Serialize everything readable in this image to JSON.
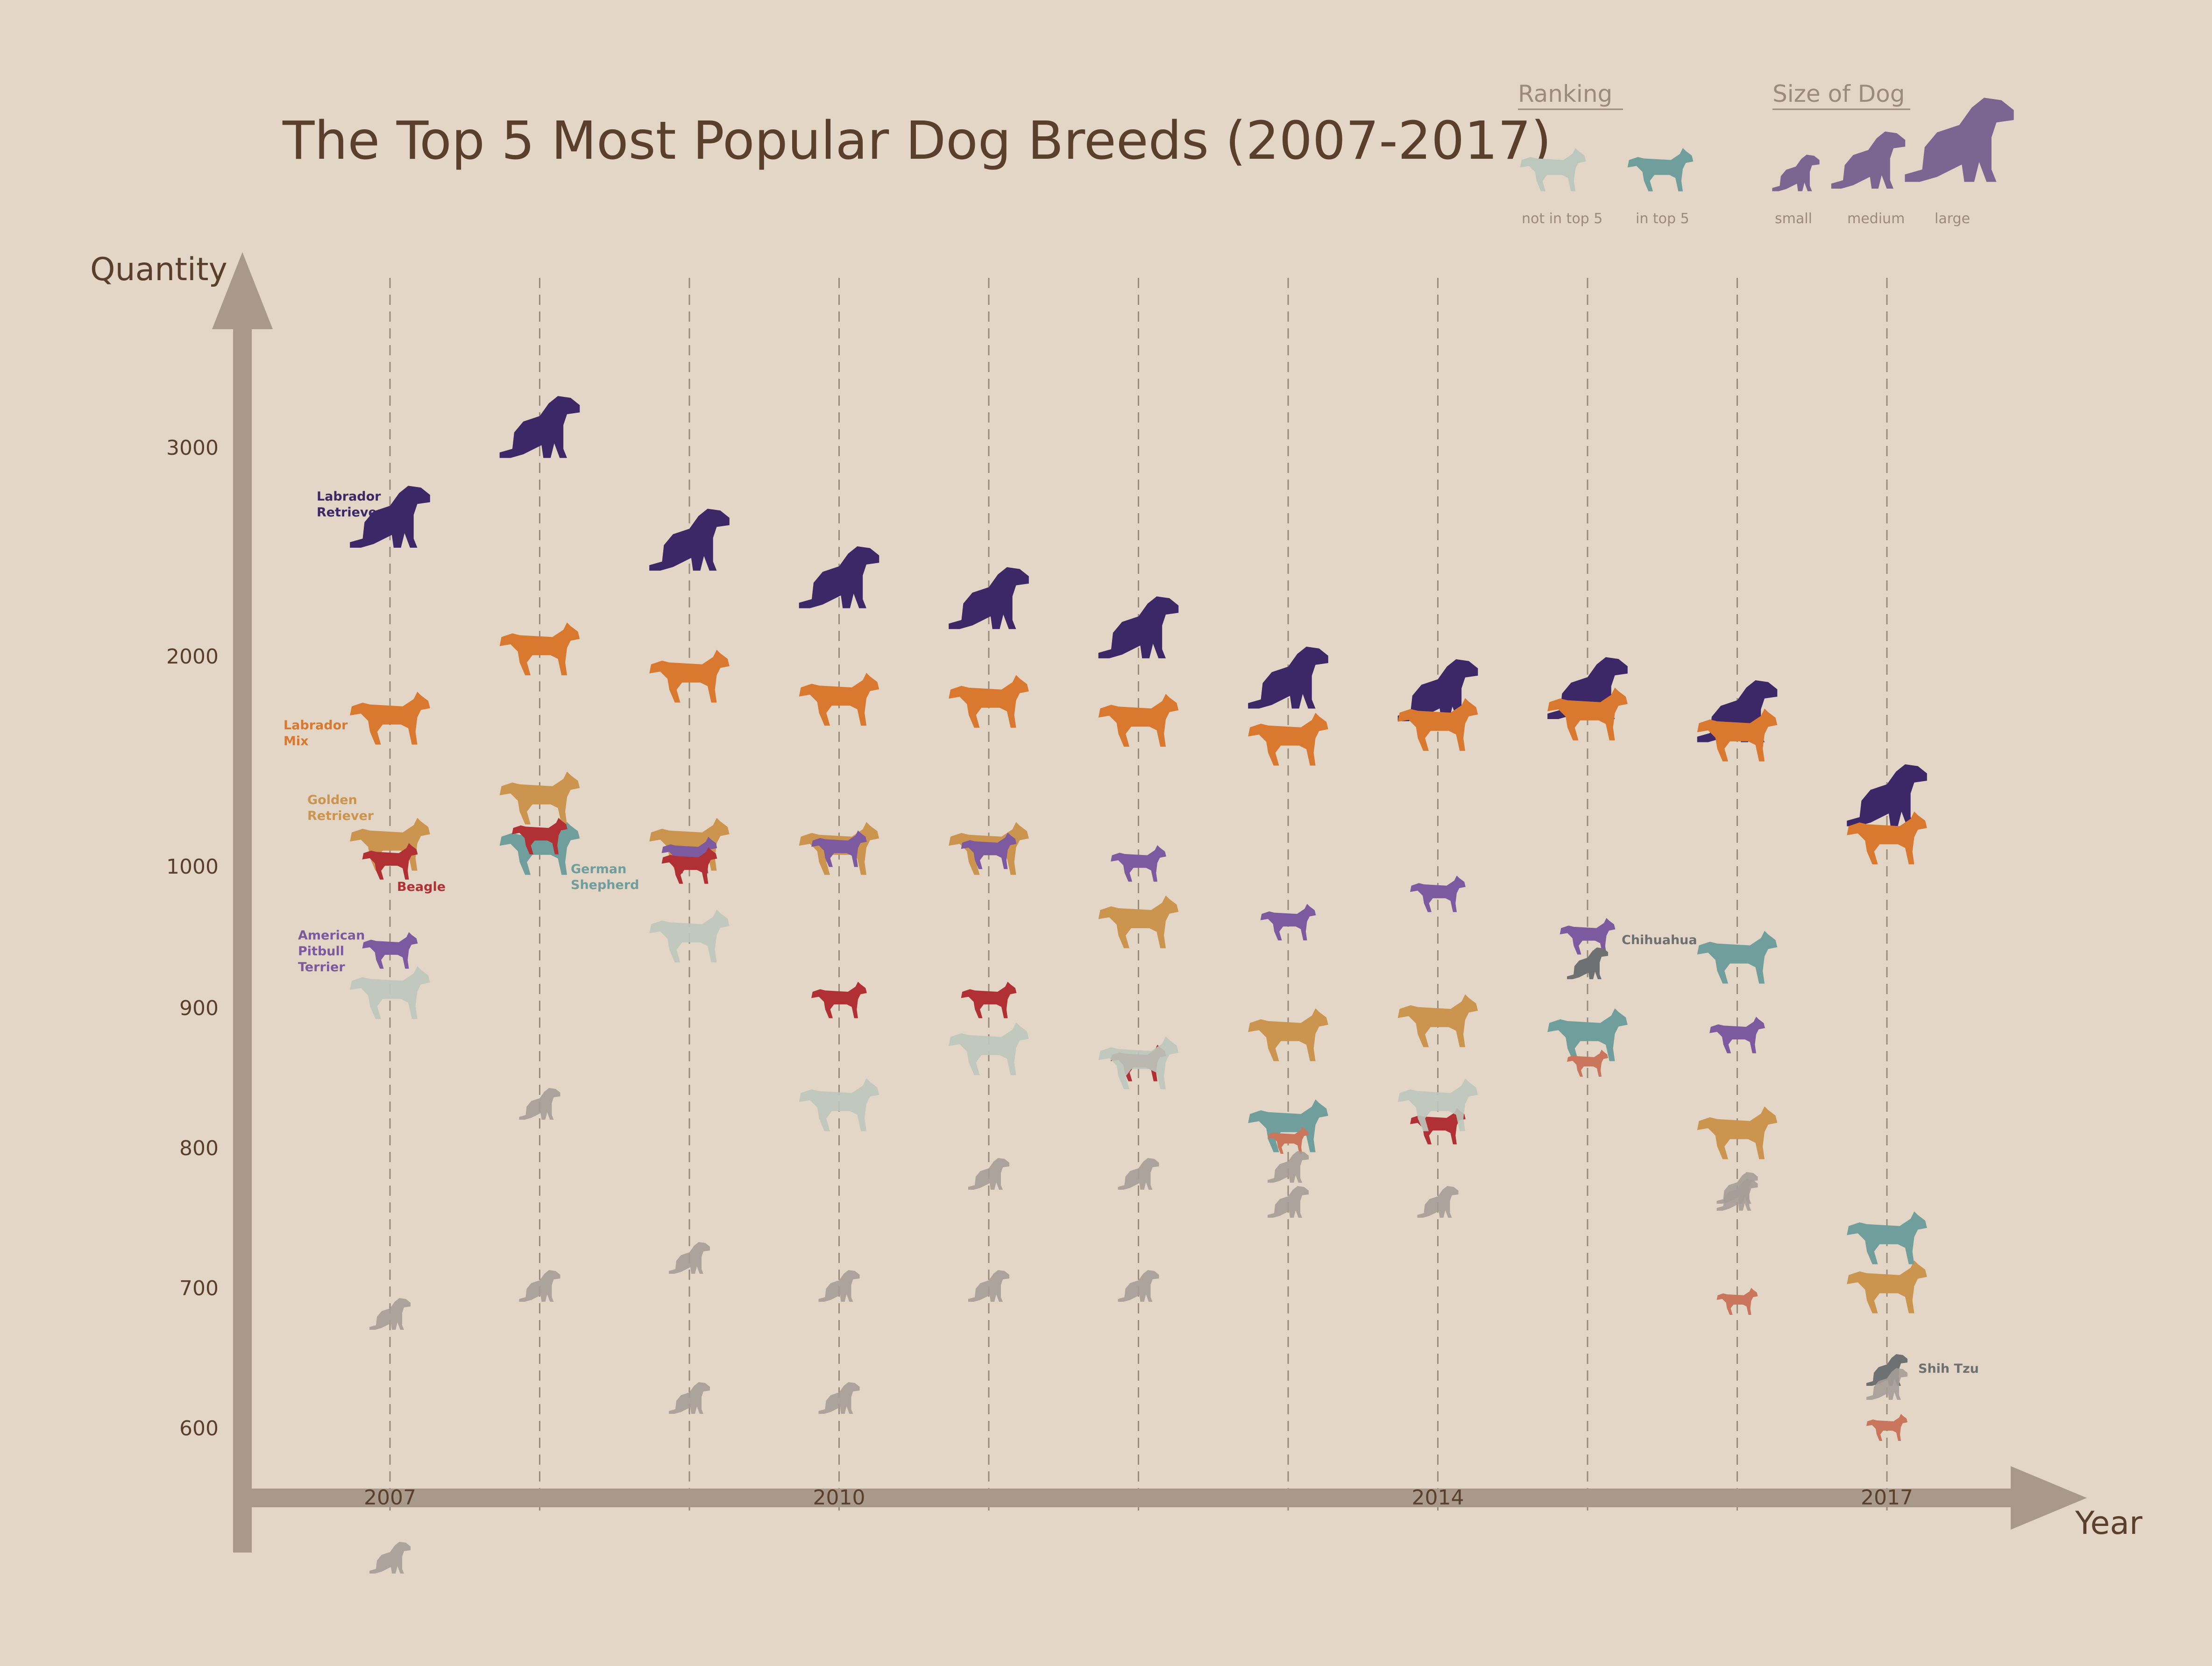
{
  "page": {
    "background": "#e3d6c6"
  },
  "chart_data": {
    "type": "scatter",
    "title": "The Top 5 Most Popular Dog Breeds (2007-2017)",
    "ylabel": "Quantity",
    "xlabel": "Year",
    "years": [
      2007,
      2008,
      2009,
      2010,
      2011,
      2012,
      2013,
      2014,
      2015,
      2016,
      2017
    ],
    "x_tick_labels": [
      {
        "year": 2007,
        "label": "2007"
      },
      {
        "year": 2010,
        "label": "2010"
      },
      {
        "year": 2014,
        "label": "2014"
      },
      {
        "year": 2017,
        "label": "2017"
      }
    ],
    "y_ticks": [
      600,
      700,
      800,
      900,
      1000,
      2000,
      3000
    ],
    "y_tick_labels": [
      "600",
      "700",
      "800",
      "900",
      "1000",
      "2000",
      "3000"
    ],
    "legend": {
      "ranking_title": "Ranking",
      "ranking_items": [
        {
          "label": "not in top 5",
          "color": "#bcc8be"
        },
        {
          "label": "in top 5",
          "color": "#6f9e9c"
        }
      ],
      "size_title": "Size of Dog",
      "size_items": [
        {
          "label": "small"
        },
        {
          "label": "medium"
        },
        {
          "label": "large"
        }
      ],
      "swatch_color": "#7a6690"
    },
    "series": [
      {
        "name": "Labrador Retriever",
        "label_lines": [
          "Labrador",
          "Retriever"
        ],
        "color": "#3c2867",
        "size": "large",
        "values": [
          2650,
          3080,
          2540,
          2360,
          2260,
          2120,
          1880,
          1820,
          1830,
          1720,
          1320
        ]
      },
      {
        "name": "Labrador Mix",
        "label_lines": [
          "Labrador",
          "Mix"
        ],
        "color": "#d9782f",
        "size": "large",
        "values": [
          1700,
          2030,
          1900,
          1790,
          1780,
          1690,
          1600,
          1670,
          1720,
          1620,
          1130
        ]
      },
      {
        "name": "Golden Retriever",
        "label_lines": [
          "Golden",
          "Retriever"
        ],
        "color": "#cb944f",
        "size": "large",
        "values": [
          1100,
          1320,
          1100,
          1080,
          1080,
          960,
          880,
          890,
          null,
          810,
          700
        ]
      },
      {
        "name": "American Pitbull Terrier",
        "label_lines": [
          "American",
          "Pitbull",
          "Terrier"
        ],
        "color": "#7d59a0",
        "size": "medium",
        "values": [
          940,
          null,
          1050,
          1080,
          1070,
          1010,
          960,
          980,
          950,
          880,
          null
        ]
      },
      {
        "name": "German Shepherd",
        "label_lines": [
          "German",
          "Shepherd"
        ],
        "color": "#6f9e9c",
        "size": "large",
        "values": [
          null,
          1080,
          null,
          null,
          null,
          null,
          815,
          null,
          880,
          935,
          735
        ]
      },
      {
        "name": "Beagle",
        "label_lines": [
          "Beagle"
        ],
        "color": "#b03034",
        "size": "medium",
        "values": [
          1020,
          1140,
          1000,
          905,
          905,
          860,
          null,
          815,
          null,
          null,
          null
        ]
      },
      {
        "name": "Chihuahua",
        "label_lines": [
          "Chihuahua"
        ],
        "color": "#6e7171",
        "size": "small",
        "values": [
          null,
          null,
          null,
          null,
          null,
          null,
          null,
          null,
          930,
          null,
          null
        ]
      },
      {
        "name": "Shih Tzu",
        "label_lines": [
          "Shih Tzu"
        ],
        "color": "#6e7171",
        "size": "small",
        "values": [
          null,
          null,
          null,
          null,
          null,
          null,
          null,
          null,
          null,
          null,
          640
        ]
      },
      {
        "name": "Red Small Breed",
        "label_lines": [],
        "color": "#c9765d",
        "size": "small",
        "values": [
          null,
          null,
          null,
          null,
          null,
          null,
          805,
          null,
          860,
          690,
          600
        ]
      },
      {
        "name": "German Shepherd (not in top 5)",
        "label_lines": [],
        "color": "#bcc8be",
        "size": "large",
        "values": [
          910,
          null,
          950,
          830,
          870,
          860,
          null,
          830,
          null,
          null,
          null
        ]
      },
      {
        "name": "Small Breed A (not in top 5)",
        "label_lines": [],
        "color": "#a59d97",
        "size": "small",
        "values": [
          680,
          830,
          720,
          700,
          780,
          780,
          785,
          760,
          null,
          765,
          630
        ]
      },
      {
        "name": "Small Breed B (not in top 5)",
        "label_lines": [],
        "color": "#a59d97",
        "size": "small",
        "values": [
          500,
          700,
          620,
          620,
          700,
          700,
          760,
          null,
          null,
          770,
          null
        ]
      }
    ]
  }
}
